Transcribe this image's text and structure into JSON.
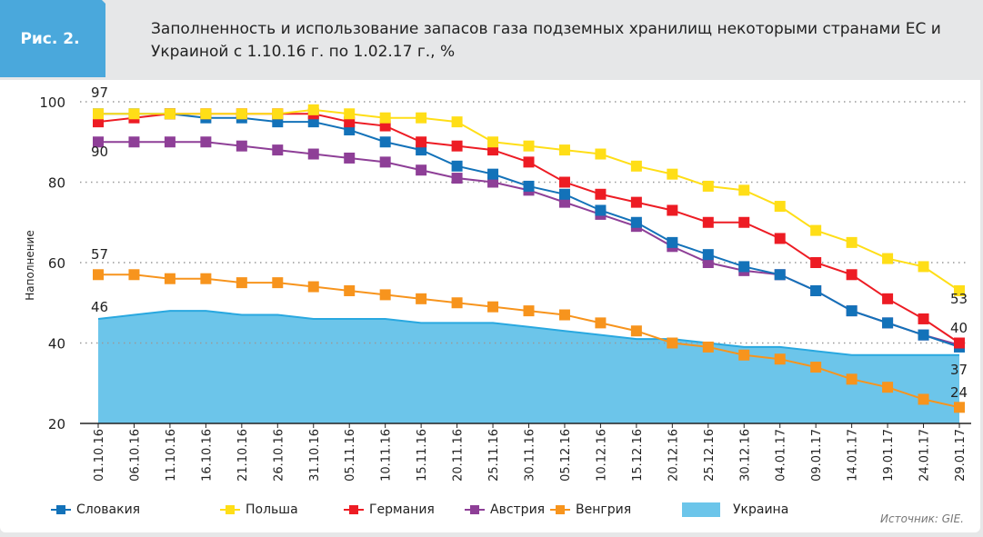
{
  "header": {
    "figure_label": "Рис. 2.",
    "title": "Заполненность и использование запасов газа подземных хранилищ некоторыми странами ЕС и Украиной с 1.10.16 г. по 1.02.17 г., %"
  },
  "source": "Источник: GIE.",
  "chart_data": {
    "type": "line",
    "title": "Заполненность и использование запасов газа подземных хранилищ некоторыми странами ЕС и Украиной с 1.10.16 г. по 1.02.17 г., %",
    "ylabel": "Наполнение",
    "xlabel": "",
    "ylim": [
      20,
      100
    ],
    "yticks": [
      20,
      40,
      60,
      80,
      100
    ],
    "grid": "horizontal dotted",
    "legend": "bottom",
    "categories": [
      "01.10.16",
      "06.10.16",
      "11.10.16",
      "16.10.16",
      "21.10.16",
      "26.10.16",
      "31.10.16",
      "05.11.16",
      "10.11.16",
      "15.11.16",
      "20.11.16",
      "25.11.16",
      "30.11.16",
      "05.12.16",
      "10.12.16",
      "15.12.16",
      "20.12.16",
      "25.12.16",
      "30.12.16",
      "04.01.17",
      "09.01.17",
      "14.01.17",
      "19.01.17",
      "24.01.17",
      "29.01.17"
    ],
    "series": [
      {
        "name": "Украина",
        "type": "area",
        "color": "#6cc5ea",
        "values": [
          46,
          47,
          48,
          48,
          47,
          47,
          46,
          46,
          46,
          45,
          45,
          45,
          44,
          43,
          42,
          41,
          41,
          40,
          39,
          39,
          38,
          37,
          37,
          37,
          37
        ]
      },
      {
        "name": "Венгрия",
        "type": "line",
        "color": "#f7941d",
        "values": [
          57,
          57,
          56,
          56,
          55,
          55,
          54,
          53,
          52,
          51,
          50,
          49,
          48,
          47,
          45,
          43,
          40,
          39,
          37,
          36,
          34,
          31,
          29,
          26,
          24
        ]
      },
      {
        "name": "Австрия",
        "type": "line",
        "color": "#8e3f97",
        "values": [
          90,
          90,
          90,
          90,
          89,
          88,
          87,
          86,
          85,
          83,
          81,
          80,
          78,
          75,
          72,
          69,
          64,
          60,
          58,
          57,
          53,
          48,
          45,
          42,
          39.5
        ]
      },
      {
        "name": "Словакия",
        "type": "line",
        "color": "#1372b9",
        "values": [
          97,
          97,
          97,
          96,
          96,
          95,
          95,
          93,
          90,
          88,
          84,
          82,
          79,
          77,
          73,
          70,
          65,
          62,
          59,
          57,
          53,
          48,
          45,
          42,
          39
        ]
      },
      {
        "name": "Германия",
        "type": "line",
        "color": "#ed1c24",
        "values": [
          95,
          96,
          97,
          97,
          97,
          97,
          97,
          95,
          94,
          90,
          89,
          88,
          85,
          80,
          77,
          75,
          73,
          70,
          70,
          66,
          60,
          57,
          51,
          46,
          40
        ]
      },
      {
        "name": "Польша",
        "type": "line",
        "color": "#ffde17",
        "values": [
          97,
          97,
          97,
          97,
          97,
          97,
          98,
          97,
          96,
          96,
          95,
          90,
          89,
          88,
          87,
          84,
          82,
          79,
          78,
          74,
          68,
          65,
          61,
          59,
          53
        ]
      }
    ],
    "annotations": [
      "97",
      "90",
      "57",
      "46",
      "53",
      "40",
      "37",
      "24"
    ],
    "legend_order": [
      "Словакия",
      "Польша",
      "Германия",
      "Австрия",
      "Венгрия",
      "Украина"
    ]
  }
}
